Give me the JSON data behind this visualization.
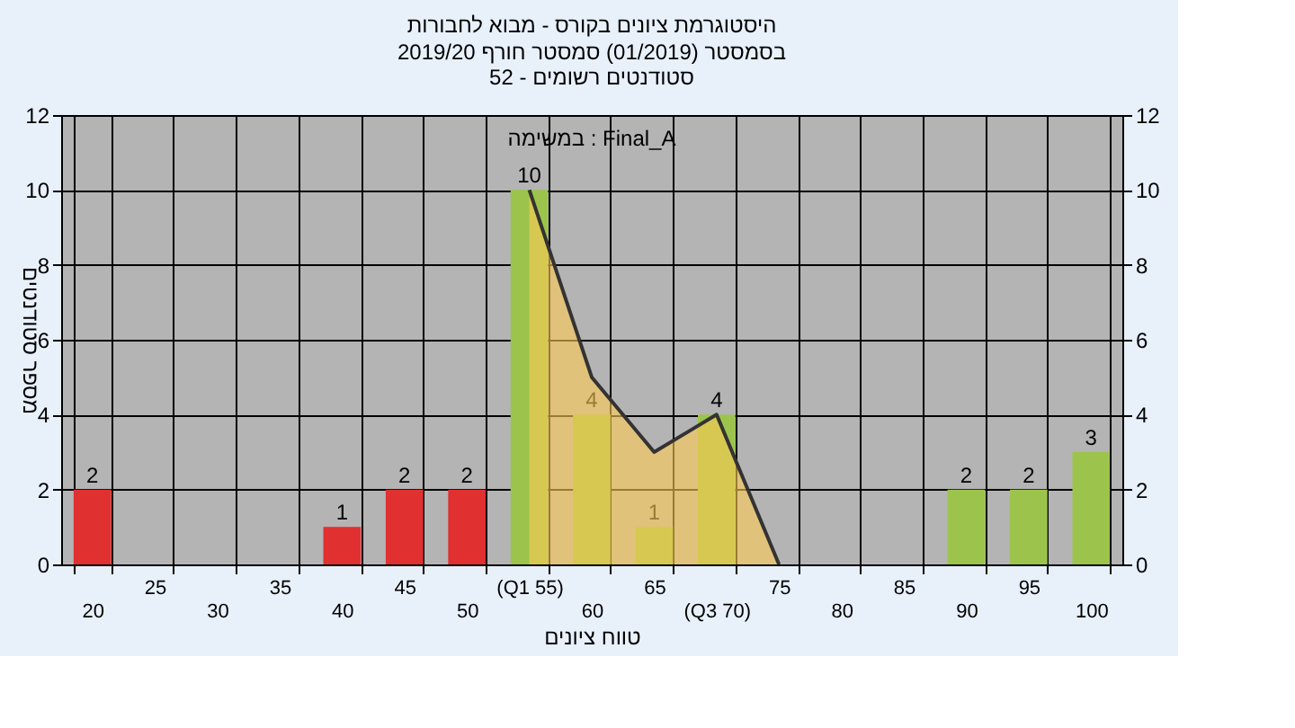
{
  "chart_data": {
    "type": "bar",
    "title": "היסטוגרמת ציונים בקורס - מבוא לחבורות",
    "subtitle": "בסמסטר  (01/2019)  סמסטר חורף 2019/20\nסטודנטים רשומים - 52",
    "xlabel": "טווח ציונים",
    "ylabel": "מספר סטודנטים",
    "annotations": [
      "במשימה : Final_A"
    ],
    "categories": [
      "20",
      "25",
      "30",
      "35",
      "40",
      "45",
      "50",
      "(Q1 55)",
      "60",
      "65",
      "(Q3 70)",
      "75",
      "80",
      "85",
      "90",
      "95",
      "100"
    ],
    "series": [
      {
        "values": [
          2,
          0,
          0,
          0,
          1,
          2,
          2,
          10,
          4,
          1,
          4,
          0,
          0,
          0,
          2,
          2,
          3
        ],
        "colors": [
          "#e03030",
          "#e03030",
          "#e03030",
          "#e03030",
          "#e03030",
          "#e03030",
          "#e03030",
          "#9cc44c",
          "#9cc44c",
          "#9cc44c",
          "#9cc44c",
          "#9cc44c",
          "#9cc44c",
          "#9cc44c",
          "#9cc44c",
          "#9cc44c",
          "#9cc44c"
        ],
        "value_labels": [
          "2",
          null,
          null,
          null,
          "1",
          "2",
          "2",
          "10",
          "4",
          "1",
          "4",
          null,
          null,
          null,
          "2",
          "2",
          "3"
        ]
      },
      {
        "type": "area",
        "color": "#ffcc55",
        "values": [
          null,
          null,
          null,
          null,
          null,
          null,
          null,
          10,
          5,
          3,
          4,
          0,
          null,
          null,
          null,
          null,
          null
        ]
      }
    ],
    "ylim": [
      0,
      12
    ],
    "yticks": [
      0,
      2,
      4,
      6,
      8,
      10,
      12
    ],
    "y2lim": [
      0,
      12
    ],
    "y2ticks": [
      0,
      2,
      4,
      6,
      8,
      10,
      12
    ],
    "grid": true
  }
}
